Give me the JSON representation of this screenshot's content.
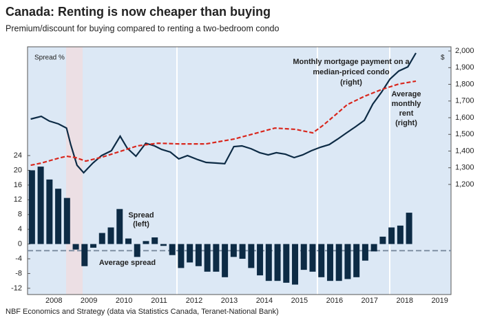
{
  "chart_data": {
    "type": "bar",
    "title": "Canada: Renting is now cheaper than buying",
    "subtitle": "Premium/discount for buying compared to renting a two-bedroom condo",
    "y_axis_label": "Spread %",
    "y2_axis_label": "$",
    "source": "NBF Economics and Strategy (data via Statistics Canada, Teranet-National Bank)",
    "xlim": [
      2007.75,
      2019.82
    ],
    "xticks": [
      {
        "value": 2008.5,
        "label": "2008"
      },
      {
        "value": 2009.5,
        "label": "2009"
      },
      {
        "value": 2010.5,
        "label": "2010"
      },
      {
        "value": 2011.5,
        "label": "2011"
      },
      {
        "value": 2012.5,
        "label": "2012"
      },
      {
        "value": 2013.5,
        "label": "2013"
      },
      {
        "value": 2014.5,
        "label": "2014"
      },
      {
        "value": 2015.5,
        "label": "2015"
      },
      {
        "value": 2016.5,
        "label": "2016"
      },
      {
        "value": 2017.5,
        "label": "2017"
      },
      {
        "value": 2018.5,
        "label": "2018"
      },
      {
        "value": 2019.5,
        "label": "2019"
      }
    ],
    "ylim": [
      -13.7,
      53.5
    ],
    "yticks": [
      -12,
      -8,
      -4,
      0,
      4,
      8,
      12,
      16,
      20,
      24
    ],
    "y2lim": [
      540,
      2025
    ],
    "y2ticks": [
      {
        "value": 1200,
        "label": "1,200"
      },
      {
        "value": 1300,
        "label": "1,300"
      },
      {
        "value": 1400,
        "label": "1,400"
      },
      {
        "value": 1500,
        "label": "1,500"
      },
      {
        "value": 1600,
        "label": "1,600"
      },
      {
        "value": 1700,
        "label": "1,700"
      },
      {
        "value": 1800,
        "label": "1,800"
      },
      {
        "value": 1900,
        "label": "1,900"
      },
      {
        "value": 2000,
        "label": "2,000"
      }
    ],
    "reference_lines": [
      {
        "value": -1.8,
        "label": "Average spread",
        "color": "#7f8fa3"
      }
    ],
    "series": [
      {
        "type": "bar",
        "label": [
          "Spread",
          "(left)"
        ],
        "color": "#0d2b45",
        "x": [
          2007.875,
          2008.125,
          2008.375,
          2008.625,
          2008.875,
          2009.125,
          2009.375,
          2009.625,
          2009.875,
          2010.125,
          2010.375,
          2010.625,
          2010.875,
          2011.125,
          2011.375,
          2011.625,
          2011.875,
          2012.125,
          2012.375,
          2012.625,
          2012.875,
          2013.125,
          2013.375,
          2013.625,
          2013.875,
          2014.125,
          2014.375,
          2014.625,
          2014.875,
          2015.125,
          2015.375,
          2015.625,
          2015.875,
          2016.125,
          2016.375,
          2016.625,
          2016.875,
          2017.125,
          2017.375,
          2017.625,
          2017.875,
          2018.125,
          2018.375,
          2018.625
        ],
        "values": [
          20,
          21,
          17.5,
          15,
          12.5,
          -1.5,
          -6,
          -1,
          3,
          4.5,
          9.5,
          1.5,
          -3.5,
          0.8,
          1.8,
          -0.5,
          -3,
          -6.5,
          -5,
          -6,
          -7.5,
          -7.5,
          -9,
          -3.5,
          -4,
          -6.5,
          -8.5,
          -10,
          -10,
          -10.5,
          -11,
          -7,
          -7.5,
          -9,
          -10,
          -10,
          -9.5,
          -9,
          -4.5,
          -2,
          2,
          4.5,
          5,
          8.5
        ]
      },
      {
        "type": "line",
        "axis": "y2",
        "label": [
          "Monthly mortgage payment on a",
          "median-priced condo",
          "(right)"
        ],
        "color": "#0d2b45",
        "dashed": false,
        "x": [
          2007.84,
          2008.14,
          2008.37,
          2008.63,
          2008.86,
          2008.98,
          2009.16,
          2009.35,
          2009.61,
          2009.86,
          2010.14,
          2010.39,
          2010.59,
          2010.84,
          2011.12,
          2011.37,
          2011.57,
          2011.82,
          2012.06,
          2012.31,
          2012.61,
          2012.84,
          2013.14,
          2013.37,
          2013.63,
          2013.86,
          2014.12,
          2014.37,
          2014.61,
          2014.84,
          2015.1,
          2015.35,
          2015.59,
          2015.84,
          2016.1,
          2016.35,
          2016.59,
          2016.84,
          2017.1,
          2017.35,
          2017.59,
          2017.84,
          2018.08,
          2018.33,
          2018.59,
          2018.82
        ],
        "values": [
          1592,
          1608,
          1580,
          1563,
          1538,
          1439,
          1315,
          1270,
          1328,
          1373,
          1402,
          1489,
          1418,
          1369,
          1447,
          1431,
          1410,
          1394,
          1353,
          1373,
          1348,
          1332,
          1328,
          1324,
          1427,
          1431,
          1414,
          1390,
          1377,
          1390,
          1381,
          1361,
          1377,
          1402,
          1423,
          1439,
          1472,
          1509,
          1546,
          1584,
          1682,
          1753,
          1831,
          1880,
          1905,
          1988
        ]
      },
      {
        "type": "line",
        "axis": "y2",
        "label": [
          "Average",
          "monthly",
          "rent",
          "(right)"
        ],
        "color": "#d9261c",
        "dashed": true,
        "x": [
          2007.84,
          2008.14,
          2008.63,
          2008.86,
          2009.12,
          2009.41,
          2009.9,
          2010.39,
          2010.88,
          2011.47,
          2012.06,
          2012.84,
          2013.63,
          2014.22,
          2014.8,
          2015.39,
          2015.88,
          2016.18,
          2016.57,
          2016.86,
          2017.35,
          2017.84,
          2018.33,
          2018.82
        ],
        "values": [
          1315,
          1328,
          1357,
          1369,
          1361,
          1340,
          1365,
          1398,
          1431,
          1447,
          1443,
          1443,
          1472,
          1505,
          1538,
          1530,
          1509,
          1555,
          1625,
          1678,
          1728,
          1769,
          1802,
          1819
        ]
      }
    ]
  }
}
